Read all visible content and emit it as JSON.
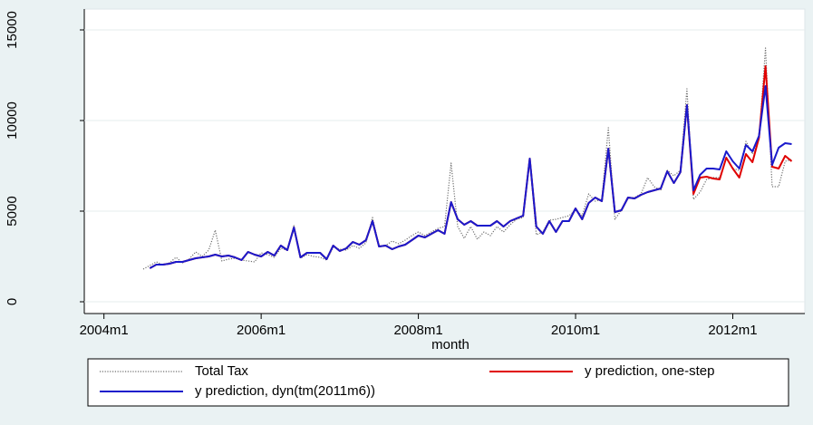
{
  "chart_data": {
    "type": "line",
    "xlabel": "month",
    "x": [
      "2004m7",
      "2004m8",
      "2004m9",
      "2004m10",
      "2004m11",
      "2004m12",
      "2005m1",
      "2005m2",
      "2005m3",
      "2005m4",
      "2005m5",
      "2005m6",
      "2005m7",
      "2005m8",
      "2005m9",
      "2005m10",
      "2005m11",
      "2005m12",
      "2006m1",
      "2006m2",
      "2006m3",
      "2006m4",
      "2006m5",
      "2006m6",
      "2006m7",
      "2006m8",
      "2006m9",
      "2006m10",
      "2006m11",
      "2006m12",
      "2007m1",
      "2007m2",
      "2007m3",
      "2007m4",
      "2007m5",
      "2007m6",
      "2007m7",
      "2007m8",
      "2007m9",
      "2007m10",
      "2007m11",
      "2007m12",
      "2008m1",
      "2008m2",
      "2008m3",
      "2008m4",
      "2008m5",
      "2008m6",
      "2008m7",
      "2008m8",
      "2008m9",
      "2008m10",
      "2008m11",
      "2008m12",
      "2009m1",
      "2009m2",
      "2009m3",
      "2009m4",
      "2009m5",
      "2009m6",
      "2009m7",
      "2009m8",
      "2009m9",
      "2009m10",
      "2009m11",
      "2009m12",
      "2010m1",
      "2010m2",
      "2010m3",
      "2010m4",
      "2010m5",
      "2010m6",
      "2010m7",
      "2010m8",
      "2010m9",
      "2010m10",
      "2010m11",
      "2010m12",
      "2011m1",
      "2011m2",
      "2011m3",
      "2011m4",
      "2011m5",
      "2011m6",
      "2011m7",
      "2011m8",
      "2011m9",
      "2011m10",
      "2011m11",
      "2011m12",
      "2012m1",
      "2012m2",
      "2012m3",
      "2012m4",
      "2012m5",
      "2012m6",
      "2012m7",
      "2012m8",
      "2012m9",
      "2012m10"
    ],
    "series": [
      {
        "name": "Total Tax",
        "color": "#6e6e6e",
        "line_style": "dotted",
        "values": [
          1800,
          2000,
          2200,
          2050,
          2150,
          2450,
          2150,
          2350,
          2750,
          2500,
          2850,
          3950,
          2250,
          2350,
          2400,
          2300,
          2250,
          2200,
          2700,
          2600,
          2450,
          2950,
          2850,
          4200,
          2400,
          2600,
          2500,
          2450,
          2300,
          3000,
          2900,
          2850,
          3100,
          2950,
          3250,
          4650,
          3050,
          3100,
          3350,
          3200,
          3400,
          3650,
          3850,
          3650,
          3850,
          4050,
          4150,
          7650,
          4150,
          3500,
          4150,
          3450,
          3850,
          3650,
          4150,
          3850,
          4250,
          4550,
          4650,
          7850,
          3700,
          3850,
          4500,
          4550,
          4650,
          4750,
          5050,
          4750,
          5950,
          5550,
          5650,
          9600,
          4550,
          5050,
          5700,
          5750,
          5950,
          6850,
          6350,
          6150,
          7250,
          6950,
          7250,
          11750,
          5650,
          6050,
          6750,
          6850,
          6850,
          7950,
          7350,
          7250,
          8850,
          8150,
          8950,
          14000,
          6350,
          6350,
          7750,
          7850
        ]
      },
      {
        "name": "y prediction, one-step",
        "color": "#e00000",
        "line_style": "solid",
        "values": [
          null,
          1850,
          2050,
          2050,
          2100,
          2200,
          2200,
          2300,
          2400,
          2450,
          2500,
          2600,
          2500,
          2550,
          2450,
          2300,
          2750,
          2600,
          2500,
          2750,
          2550,
          3100,
          2850,
          4100,
          2450,
          2700,
          2700,
          2700,
          2350,
          3100,
          2800,
          2950,
          3300,
          3150,
          3400,
          4450,
          3050,
          3100,
          2900,
          3050,
          3150,
          3400,
          3650,
          3550,
          3750,
          3950,
          3750,
          5500,
          4550,
          4250,
          4450,
          4200,
          4200,
          4200,
          4450,
          4150,
          4450,
          4600,
          4750,
          7900,
          4150,
          3750,
          4450,
          3850,
          4450,
          4450,
          5150,
          4550,
          5450,
          5750,
          5550,
          8450,
          4950,
          5050,
          5750,
          5700,
          5900,
          6050,
          6150,
          6250,
          7200,
          6550,
          7150,
          10850,
          5950,
          6850,
          6900,
          6800,
          6750,
          7950,
          7350,
          6850,
          8150,
          7700,
          9050,
          13000,
          7450,
          7350,
          8050,
          7750
        ]
      },
      {
        "name": "y prediction, dyn(tm(2011m6))",
        "color": "#1a1acc",
        "line_style": "solid",
        "values": [
          null,
          1850,
          2050,
          2050,
          2100,
          2200,
          2200,
          2300,
          2400,
          2450,
          2500,
          2600,
          2500,
          2550,
          2450,
          2300,
          2750,
          2600,
          2500,
          2750,
          2550,
          3100,
          2850,
          4100,
          2450,
          2700,
          2700,
          2700,
          2350,
          3100,
          2800,
          2950,
          3300,
          3150,
          3400,
          4450,
          3050,
          3100,
          2900,
          3050,
          3150,
          3400,
          3650,
          3550,
          3750,
          3950,
          3750,
          5500,
          4550,
          4250,
          4450,
          4200,
          4200,
          4200,
          4450,
          4150,
          4450,
          4600,
          4750,
          7900,
          4150,
          3750,
          4450,
          3850,
          4450,
          4450,
          5150,
          4550,
          5450,
          5750,
          5550,
          8450,
          4950,
          5050,
          5750,
          5700,
          5900,
          6050,
          6150,
          6250,
          7200,
          6550,
          7150,
          10850,
          6150,
          7000,
          7350,
          7350,
          7300,
          8300,
          7750,
          7350,
          8650,
          8300,
          9150,
          11900,
          7550,
          8500,
          8750,
          8700
        ]
      }
    ],
    "xlim": [
      "2003m10",
      "2012m12"
    ],
    "xticks": [
      "2004m1",
      "2006m1",
      "2008m1",
      "2010m1",
      "2012m1"
    ],
    "ylim": [
      -650,
      16150
    ],
    "yticks": [
      0,
      5000,
      10000,
      15000
    ],
    "grid": true,
    "legend": "bottom"
  }
}
